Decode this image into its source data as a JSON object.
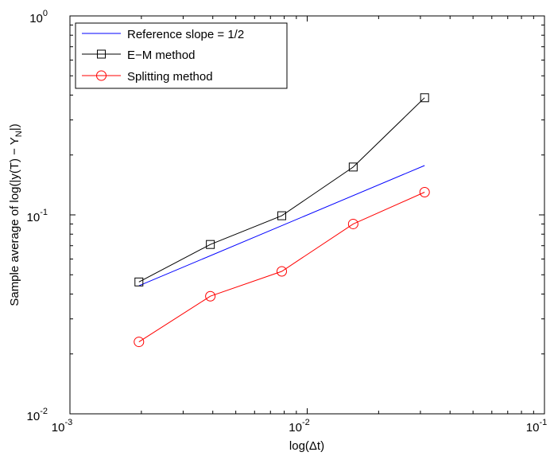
{
  "chart_data": {
    "type": "line",
    "xscale": "log",
    "yscale": "log",
    "xlim": [
      0.001,
      0.1
    ],
    "ylim": [
      0.01,
      1
    ],
    "xlabel": "log(Δt)",
    "ylabel_main": "Sample average of log(|y(T) − Y",
    "ylabel_sub": "N",
    "ylabel_tail": "|)",
    "xticks": [
      {
        "value": 0.001,
        "base": "10",
        "exp": "-3"
      },
      {
        "value": 0.01,
        "base": "10",
        "exp": "-2"
      },
      {
        "value": 0.1,
        "base": "10",
        "exp": "-1"
      }
    ],
    "yticks": [
      {
        "value": 0.01,
        "base": "10",
        "exp": "-2"
      },
      {
        "value": 0.1,
        "base": "10",
        "exp": "-1"
      },
      {
        "value": 1,
        "base": "10",
        "exp": "0"
      }
    ],
    "legend_position": "top-left",
    "series": [
      {
        "name": "Reference slope = 1/2",
        "color": "#0000ff",
        "marker": "none",
        "x": [
          0.001953125,
          0.03125
        ],
        "y": [
          0.044,
          0.177
        ]
      },
      {
        "name": "E−M method",
        "color": "#000000",
        "marker": "square",
        "x": [
          0.001953125,
          0.00390625,
          0.0078125,
          0.015625,
          0.03125
        ],
        "y": [
          0.046,
          0.071,
          0.099,
          0.174,
          0.388
        ]
      },
      {
        "name": "Splitting method",
        "color": "#ff0000",
        "marker": "circle",
        "x": [
          0.001953125,
          0.00390625,
          0.0078125,
          0.015625,
          0.03125
        ],
        "y": [
          0.023,
          0.039,
          0.052,
          0.09,
          0.13
        ]
      }
    ]
  }
}
